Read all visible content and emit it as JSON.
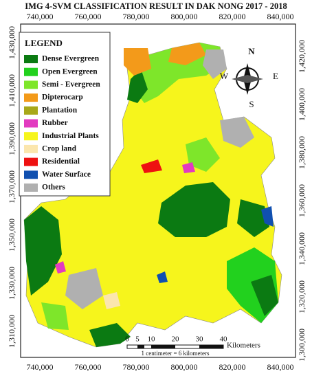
{
  "title": "IMG 4-SVM  CLASSIFICATION RESULT IN DAK NONG 2017 - 2018",
  "x_labels": [
    "740,000",
    "760,000",
    "780,000",
    "800,000",
    "820,000",
    "840,000"
  ],
  "y_labels_left": [
    "1,430,000",
    "1,410,000",
    "1,390,000",
    "1,370,000",
    "1,350,000",
    "1,330,000",
    "1,310,000"
  ],
  "y_labels_right": [
    "1,420,000",
    "1,400,000",
    "1,380,000",
    "1,360,000",
    "1,340,000",
    "1,320,000",
    "1,300,000"
  ],
  "legend": {
    "title": "LEGEND",
    "items": [
      {
        "label": "Dense Evergreen",
        "color": "#0b7a12"
      },
      {
        "label": "Open Evergreen",
        "color": "#22d11e"
      },
      {
        "label": "Semi - Evergreen",
        "color": "#7ee62a"
      },
      {
        "label": "Dipterocarp",
        "color": "#f39a1a"
      },
      {
        "label": "Plantation",
        "color": "#a8a81a"
      },
      {
        "label": "Rubber",
        "color": "#e23bc0"
      },
      {
        "label": "Industrial Plants",
        "color": "#f6f51c"
      },
      {
        "label": "Crop land",
        "color": "#fbe6ad"
      },
      {
        "label": "Residential",
        "color": "#ee1111"
      },
      {
        "label": "Water Surface",
        "color": "#1050b0"
      },
      {
        "label": "Others",
        "color": "#b0b0b0"
      }
    ]
  },
  "compass": {
    "n": "N",
    "s": "S",
    "e": "E",
    "w": "W"
  },
  "scale": {
    "labels": [
      "0",
      "5",
      "10",
      "20",
      "30",
      "40"
    ],
    "unit": "Kilometers",
    "note": "1 centimeter = 6 kilometers"
  }
}
